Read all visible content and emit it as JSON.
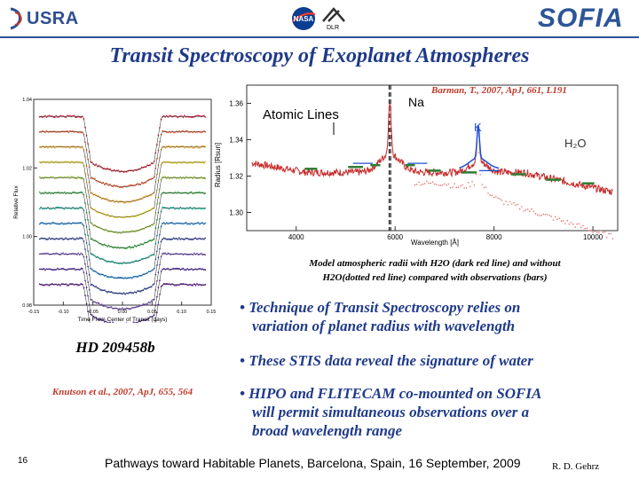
{
  "header": {
    "usra_logo": "USRA",
    "nasa_logo": "NASA",
    "dlr_logo": "DLR",
    "sofia_logo": "SOFIA"
  },
  "slide": {
    "title": "Transit Spectroscopy of Exoplanet Atmospheres",
    "barman_citation": "Barman, T., 2007, ApJ, 661, L191",
    "caption_line1": "Model atmospheric radii with H2O (dark red line) and without",
    "caption_line2": "H2O(dotted red line) compared with observations (bars)",
    "target_name": "HD 209458b",
    "knutson_citation": "Knutson et al., 2007, ApJ, 655, 564",
    "bullets": [
      {
        "lines": [
          "Technique of Transit Spectroscopy relies on",
          "variation of planet radius with wavelength"
        ]
      },
      {
        "lines": [
          "These STIS data reveal the signature of water"
        ]
      },
      {
        "lines": [
          "HIPO and FLITECAM co-mounted on SOFIA",
          "will permit simultaneous observations over a",
          "broad wavelength range"
        ]
      }
    ],
    "page_number": "16",
    "footer": "Pathways toward Habitable Planets, Barcelona, Spain, 16 September, 2009",
    "author": "R. D. Gehrz"
  },
  "chart_data": [
    {
      "type": "line",
      "xlabel": "Time From Center of Transit (days)",
      "ylabel": "Relative Flux",
      "xlim": [
        -0.15,
        0.15
      ],
      "ylim": [
        0.98,
        1.04
      ],
      "x_ticks": [
        "-0.15",
        "-0.10",
        "-0.05",
        "0.00",
        "0.05",
        "0.10",
        "0.15"
      ],
      "y_ticks": [
        "0.98",
        "1.00",
        "1.02",
        "1.04"
      ],
      "transit_depth": 0.016,
      "series_colors": [
        "#d7263d",
        "#f46036",
        "#f5a623",
        "#e8d21d",
        "#9bc53d",
        "#3fb549",
        "#1fb3a0",
        "#1e88e5",
        "#3949ab",
        "#7e57c2",
        "#5e35b1",
        "#6a1b9a"
      ]
    },
    {
      "type": "line",
      "xlabel": "Wavelength [Å]",
      "ylabel": "Radius [Rsun]",
      "xlim": [
        3000,
        10500
      ],
      "ylim": [
        1.29,
        1.37
      ],
      "x_ticks": [
        4000,
        6000,
        8000,
        10000
      ],
      "y_ticks": [
        1.3,
        1.32,
        1.34,
        1.36
      ],
      "annotations": [
        "Atomic Lines",
        "Na",
        "K",
        "H₂O"
      ],
      "line_colors": {
        "with_h2o": "#c62828",
        "without_h2o": "#e57373",
        "model_blue": "#1e4fd6",
        "bars": "#2e7d32"
      }
    }
  ]
}
